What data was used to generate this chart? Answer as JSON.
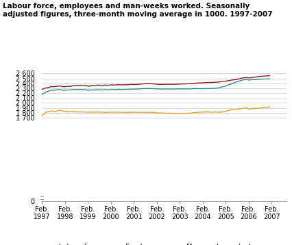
{
  "title_line1": "Labour force, employees and man-weeks worked. Seasonally",
  "title_line2": "adjusted figures, three-month moving average in 1000. 1997-2007",
  "ylim_top": 2700,
  "yticks": [
    0,
    1700,
    1800,
    1900,
    2000,
    2100,
    2200,
    2300,
    2400,
    2500,
    2600
  ],
  "ytick_labels": [
    "0",
    "1 700",
    "1 800",
    "1 900",
    "2 000",
    "2 100",
    "2 200",
    "2 300",
    "2 400",
    "2 500",
    "2 600"
  ],
  "xtick_years": [
    1997,
    1998,
    1999,
    2000,
    2001,
    2002,
    2003,
    2004,
    2005,
    2006,
    2007
  ],
  "labor_force_color": "#8B1A1A",
  "employees_color": "#2E8B8B",
  "manweeks_color": "#E8A020",
  "background_color": "#ffffff",
  "grid_color": "#cccccc",
  "legend_labels": [
    "Labour force",
    "Employees",
    "Man-weeks worked"
  ],
  "labour_force": [
    2275,
    2295,
    2305,
    2310,
    2320,
    2335,
    2330,
    2335,
    2340,
    2345,
    2340,
    2330,
    2330,
    2340,
    2335,
    2340,
    2350,
    2355,
    2360,
    2355,
    2360,
    2355,
    2360,
    2355,
    2340,
    2345,
    2355,
    2350,
    2355,
    2365,
    2360,
    2355,
    2360,
    2365,
    2362,
    2360,
    2370,
    2368,
    2365,
    2370,
    2372,
    2370,
    2368,
    2372,
    2370,
    2372,
    2375,
    2378,
    2375,
    2378,
    2380,
    2382,
    2385,
    2388,
    2390,
    2393,
    2393,
    2390,
    2388,
    2385,
    2382,
    2380,
    2378,
    2378,
    2380,
    2382,
    2382,
    2380,
    2378,
    2380,
    2382,
    2383,
    2385,
    2388,
    2385,
    2387,
    2390,
    2392,
    2395,
    2400,
    2402,
    2405,
    2408,
    2410,
    2410,
    2412,
    2415,
    2418,
    2415,
    2418,
    2420,
    2422,
    2425,
    2430,
    2435,
    2440,
    2445,
    2450,
    2455,
    2465,
    2470,
    2475,
    2480,
    2490,
    2500,
    2510,
    2515,
    2520,
    2510,
    2515,
    2520,
    2525,
    2530,
    2535,
    2540,
    2545,
    2548,
    2550,
    2552,
    2555
  ],
  "employees": [
    2175,
    2200,
    2220,
    2235,
    2250,
    2260,
    2258,
    2262,
    2268,
    2272,
    2268,
    2255,
    2255,
    2265,
    2262,
    2265,
    2270,
    2272,
    2275,
    2272,
    2275,
    2270,
    2270,
    2268,
    2255,
    2260,
    2268,
    2262,
    2265,
    2272,
    2268,
    2262,
    2268,
    2270,
    2268,
    2265,
    2275,
    2272,
    2270,
    2275,
    2278,
    2275,
    2272,
    2278,
    2275,
    2278,
    2280,
    2282,
    2280,
    2282,
    2285,
    2288,
    2290,
    2292,
    2293,
    2295,
    2295,
    2293,
    2292,
    2290,
    2288,
    2285,
    2283,
    2282,
    2283,
    2285,
    2285,
    2283,
    2282,
    2283,
    2285,
    2285,
    2285,
    2288,
    2285,
    2285,
    2285,
    2287,
    2288,
    2292,
    2292,
    2292,
    2292,
    2292,
    2290,
    2292,
    2293,
    2295,
    2293,
    2295,
    2297,
    2300,
    2305,
    2315,
    2325,
    2335,
    2345,
    2360,
    2375,
    2390,
    2405,
    2420,
    2432,
    2445,
    2458,
    2468,
    2475,
    2480,
    2468,
    2472,
    2475,
    2478,
    2480,
    2482,
    2484,
    2485,
    2486,
    2488,
    2490,
    2492
  ],
  "manweeks": [
    1745,
    1775,
    1800,
    1820,
    1820,
    1835,
    1820,
    1825,
    1840,
    1850,
    1845,
    1830,
    1830,
    1835,
    1820,
    1825,
    1820,
    1815,
    1820,
    1815,
    1818,
    1815,
    1815,
    1812,
    1808,
    1812,
    1815,
    1808,
    1812,
    1815,
    1810,
    1808,
    1812,
    1808,
    1806,
    1808,
    1812,
    1810,
    1808,
    1810,
    1810,
    1808,
    1806,
    1808,
    1806,
    1806,
    1808,
    1810,
    1808,
    1808,
    1808,
    1808,
    1806,
    1806,
    1808,
    1808,
    1806,
    1806,
    1806,
    1802,
    1798,
    1796,
    1794,
    1792,
    1790,
    1790,
    1790,
    1790,
    1788,
    1786,
    1786,
    1786,
    1786,
    1788,
    1786,
    1786,
    1788,
    1790,
    1795,
    1800,
    1802,
    1805,
    1808,
    1810,
    1812,
    1815,
    1818,
    1820,
    1810,
    1812,
    1815,
    1812,
    1808,
    1810,
    1812,
    1820,
    1830,
    1840,
    1850,
    1858,
    1862,
    1868,
    1872,
    1878,
    1882,
    1888,
    1895,
    1900,
    1875,
    1878,
    1882,
    1885,
    1888,
    1892,
    1895,
    1900,
    1905,
    1910,
    1915,
    1920
  ]
}
